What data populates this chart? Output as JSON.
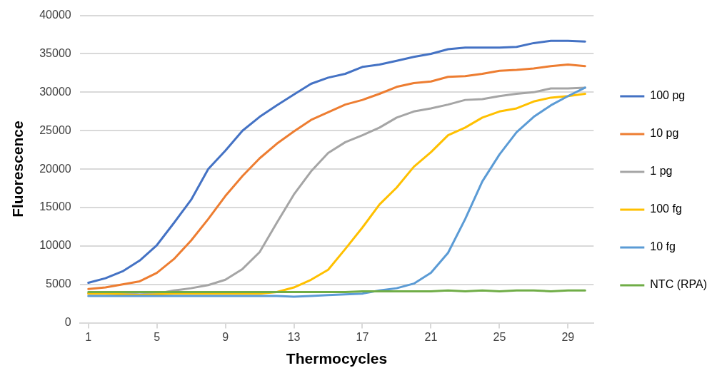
{
  "chart_data": {
    "type": "line",
    "xlabel": "Thermocycles",
    "ylabel": "Fluorescence",
    "x": [
      1,
      2,
      3,
      4,
      5,
      6,
      7,
      8,
      9,
      10,
      11,
      12,
      13,
      14,
      15,
      16,
      17,
      18,
      19,
      20,
      21,
      22,
      23,
      24,
      25,
      26,
      27,
      28,
      29,
      30
    ],
    "xlim": [
      0.5,
      30.5
    ],
    "xticks": [
      1,
      5,
      9,
      13,
      17,
      21,
      25,
      29
    ],
    "ylim": [
      0,
      40000
    ],
    "yticks": [
      0,
      5000,
      10000,
      15000,
      20000,
      25000,
      30000,
      35000,
      40000
    ],
    "grid": "y",
    "legend": "right",
    "marker": "none",
    "line_style": "solid",
    "series": [
      {
        "name": "100 pg",
        "color": "#4472c4",
        "values": [
          5200,
          5800,
          6700,
          8100,
          10100,
          13000,
          16000,
          20000,
          22400,
          25000,
          26800,
          28300,
          29700,
          31100,
          31900,
          32400,
          33300,
          33600,
          34100,
          34600,
          35000,
          35600,
          35800,
          35800,
          35800,
          35900,
          36400,
          36700,
          36700,
          36600
        ]
      },
      {
        "name": "10 pg",
        "color": "#ed7d31",
        "values": [
          4400,
          4600,
          5000,
          5400,
          6500,
          8300,
          10700,
          13500,
          16500,
          19100,
          21400,
          23300,
          24900,
          26400,
          27400,
          28400,
          29000,
          29800,
          30700,
          31200,
          31400,
          32000,
          32100,
          32400,
          32800,
          32900,
          33100,
          33400,
          33600,
          33400
        ]
      },
      {
        "name": "1 pg",
        "color": "#a5a5a5",
        "values": [
          3800,
          3800,
          3800,
          3700,
          3800,
          4200,
          4500,
          4900,
          5600,
          7000,
          9200,
          13000,
          16700,
          19700,
          22100,
          23500,
          24400,
          25400,
          26700,
          27500,
          27900,
          28400,
          29000,
          29100,
          29500,
          29800,
          30000,
          30500,
          30500,
          30600
        ]
      },
      {
        "name": "100 fg",
        "color": "#ffc000",
        "values": [
          3800,
          3800,
          3700,
          3600,
          3700,
          3800,
          3800,
          3800,
          3800,
          3800,
          3800,
          4000,
          4600,
          5600,
          6900,
          9600,
          12400,
          15400,
          17600,
          20300,
          22200,
          24400,
          25400,
          26700,
          27500,
          27900,
          28800,
          29300,
          29500,
          29800
        ]
      },
      {
        "name": "10 fg",
        "color": "#5b9bd5",
        "values": [
          3500,
          3500,
          3500,
          3500,
          3500,
          3500,
          3500,
          3500,
          3500,
          3500,
          3500,
          3500,
          3400,
          3500,
          3600,
          3700,
          3800,
          4200,
          4500,
          5100,
          6500,
          9100,
          13500,
          18400,
          21900,
          24800,
          26800,
          28300,
          29500,
          30600
        ]
      },
      {
        "name": "NTC (RPA)",
        "color": "#70ad47",
        "values": [
          4000,
          4000,
          4000,
          4000,
          4000,
          4000,
          4000,
          4000,
          4000,
          4000,
          4000,
          4000,
          4000,
          4000,
          4000,
          4000,
          4100,
          4100,
          4100,
          4100,
          4100,
          4200,
          4100,
          4200,
          4100,
          4200,
          4200,
          4100,
          4200,
          4200
        ]
      }
    ]
  }
}
